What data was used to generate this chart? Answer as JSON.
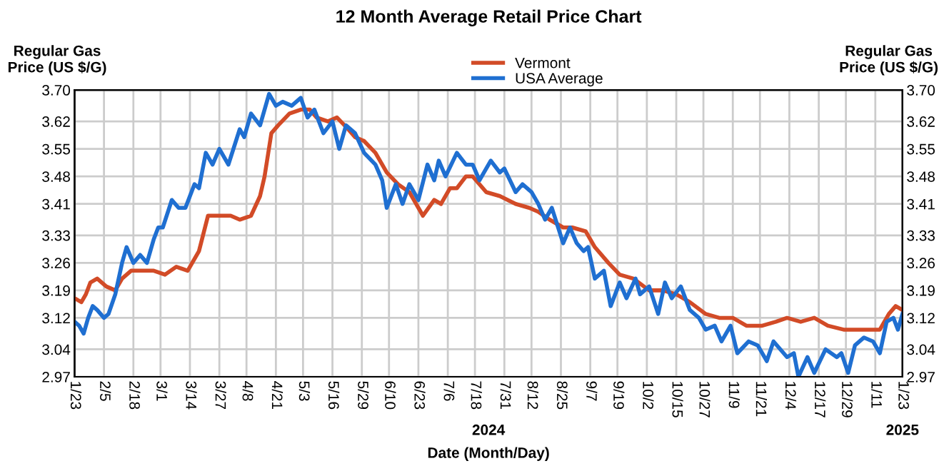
{
  "chart_data": {
    "type": "line",
    "title": "12 Month Average Retail Price Chart",
    "xlabel": "Date (Month/Day)",
    "ylabel": "Regular Gas\nPrice (US $/G)",
    "y2label": "Regular Gas\nPrice (US $/G)",
    "annotations": [
      "2024",
      "2025"
    ],
    "legend": "top",
    "grid": true,
    "marker": "none",
    "line_style": "solid",
    "xlim": [
      "2024-01-23",
      "2025-01-23"
    ],
    "xticks": [
      {
        "value": "2024-01-23",
        "label": "1/23"
      },
      {
        "value": "2024-02-05",
        "label": "2/5"
      },
      {
        "value": "2024-02-18",
        "label": "2/18"
      },
      {
        "value": "2024-03-01",
        "label": "3/1"
      },
      {
        "value": "2024-03-14",
        "label": "3/14"
      },
      {
        "value": "2024-03-27",
        "label": "3/27"
      },
      {
        "value": "2024-04-08",
        "label": "4/8"
      },
      {
        "value": "2024-04-21",
        "label": "4/21"
      },
      {
        "value": "2024-05-03",
        "label": "5/3"
      },
      {
        "value": "2024-05-16",
        "label": "5/16"
      },
      {
        "value": "2024-05-29",
        "label": "5/29"
      },
      {
        "value": "2024-06-10",
        "label": "6/10"
      },
      {
        "value": "2024-06-23",
        "label": "6/23"
      },
      {
        "value": "2024-07-06",
        "label": "7/6"
      },
      {
        "value": "2024-07-18",
        "label": "7/18"
      },
      {
        "value": "2024-07-31",
        "label": "7/31"
      },
      {
        "value": "2024-08-12",
        "label": "8/12"
      },
      {
        "value": "2024-08-25",
        "label": "8/25"
      },
      {
        "value": "2024-09-07",
        "label": "9/7"
      },
      {
        "value": "2024-09-19",
        "label": "9/19"
      },
      {
        "value": "2024-10-02",
        "label": "10/2"
      },
      {
        "value": "2024-10-15",
        "label": "10/15"
      },
      {
        "value": "2024-10-27",
        "label": "10/27"
      },
      {
        "value": "2024-11-09",
        "label": "11/9"
      },
      {
        "value": "2024-11-21",
        "label": "11/21"
      },
      {
        "value": "2024-12-04",
        "label": "12/4"
      },
      {
        "value": "2024-12-17",
        "label": "12/17"
      },
      {
        "value": "2024-12-29",
        "label": "12/29"
      },
      {
        "value": "2025-01-11",
        "label": "1/11"
      },
      {
        "value": "2025-01-23",
        "label": "1/23"
      }
    ],
    "ylim": [
      2.97,
      3.7
    ],
    "yticks": [
      2.97,
      3.04,
      3.12,
      3.19,
      3.26,
      3.33,
      3.41,
      3.48,
      3.55,
      3.62,
      {
        "value": 3.7,
        "label": "3.70"
      }
    ],
    "y2lim": [
      2.97,
      3.7
    ],
    "y2ticks": [
      2.97,
      3.04,
      3.12,
      3.19,
      3.26,
      3.33,
      3.41,
      3.48,
      3.55,
      3.62,
      {
        "value": 3.7,
        "label": "3.70"
      }
    ],
    "series": [
      {
        "name": "Vermont",
        "color": "#d24b27",
        "x": [
          "2024-01-23",
          "2024-01-26",
          "2024-01-28",
          "2024-01-30",
          "2024-02-02",
          "2024-02-06",
          "2024-02-10",
          "2024-02-13",
          "2024-02-17",
          "2024-02-21",
          "2024-02-27",
          "2024-03-03",
          "2024-03-08",
          "2024-03-13",
          "2024-03-18",
          "2024-03-22",
          "2024-03-27",
          "2024-04-01",
          "2024-04-05",
          "2024-04-10",
          "2024-04-14",
          "2024-04-16",
          "2024-04-19",
          "2024-04-22",
          "2024-04-27",
          "2024-05-02",
          "2024-05-06",
          "2024-05-09",
          "2024-05-14",
          "2024-05-18",
          "2024-05-23",
          "2024-05-26",
          "2024-05-30",
          "2024-06-04",
          "2024-06-09",
          "2024-06-14",
          "2024-06-19",
          "2024-06-25",
          "2024-06-30",
          "2024-07-03",
          "2024-07-07",
          "2024-07-10",
          "2024-07-14",
          "2024-07-17",
          "2024-07-23",
          "2024-07-29",
          "2024-08-05",
          "2024-08-11",
          "2024-08-15",
          "2024-08-20",
          "2024-08-26",
          "2024-08-30",
          "2024-09-05",
          "2024-09-09",
          "2024-09-15",
          "2024-09-20",
          "2024-09-26",
          "2024-10-03",
          "2024-10-09",
          "2024-10-15",
          "2024-10-21",
          "2024-10-28",
          "2024-11-03",
          "2024-11-09",
          "2024-11-15",
          "2024-11-22",
          "2024-11-28",
          "2024-12-03",
          "2024-12-09",
          "2024-12-15",
          "2024-12-21",
          "2024-12-28",
          "2025-01-03",
          "2025-01-09",
          "2025-01-13",
          "2025-01-17",
          "2025-01-20",
          "2025-01-23"
        ],
        "values": [
          3.17,
          3.16,
          3.18,
          3.21,
          3.22,
          3.2,
          3.19,
          3.22,
          3.24,
          3.24,
          3.24,
          3.23,
          3.25,
          3.24,
          3.29,
          3.38,
          3.38,
          3.38,
          3.37,
          3.38,
          3.43,
          3.48,
          3.59,
          3.61,
          3.64,
          3.65,
          3.65,
          3.63,
          3.62,
          3.63,
          3.6,
          3.58,
          3.57,
          3.54,
          3.49,
          3.46,
          3.44,
          3.38,
          3.42,
          3.41,
          3.45,
          3.45,
          3.48,
          3.48,
          3.44,
          3.43,
          3.41,
          3.4,
          3.39,
          3.37,
          3.35,
          3.35,
          3.34,
          3.3,
          3.26,
          3.23,
          3.22,
          3.19,
          3.19,
          3.18,
          3.16,
          3.13,
          3.12,
          3.12,
          3.1,
          3.1,
          3.11,
          3.12,
          3.11,
          3.12,
          3.1,
          3.09,
          3.09,
          3.09,
          3.09,
          3.13,
          3.15,
          3.14
        ]
      },
      {
        "name": "USA Average",
        "color": "#1f6fd1",
        "x": [
          "2024-01-23",
          "2024-01-25",
          "2024-01-27",
          "2024-01-29",
          "2024-01-31",
          "2024-02-02",
          "2024-02-05",
          "2024-02-07",
          "2024-02-10",
          "2024-02-13",
          "2024-02-15",
          "2024-02-18",
          "2024-02-21",
          "2024-02-24",
          "2024-02-27",
          "2024-02-29",
          "2024-03-02",
          "2024-03-06",
          "2024-03-09",
          "2024-03-12",
          "2024-03-16",
          "2024-03-18",
          "2024-03-21",
          "2024-03-24",
          "2024-03-27",
          "2024-03-31",
          "2024-04-05",
          "2024-04-07",
          "2024-04-10",
          "2024-04-14",
          "2024-04-18",
          "2024-04-21",
          "2024-04-24",
          "2024-04-28",
          "2024-05-02",
          "2024-05-05",
          "2024-05-08",
          "2024-05-12",
          "2024-05-16",
          "2024-05-19",
          "2024-05-22",
          "2024-05-26",
          "2024-05-30",
          "2024-06-04",
          "2024-06-07",
          "2024-06-09",
          "2024-06-13",
          "2024-06-16",
          "2024-06-19",
          "2024-06-23",
          "2024-06-27",
          "2024-06-30",
          "2024-07-02",
          "2024-07-05",
          "2024-07-10",
          "2024-07-14",
          "2024-07-17",
          "2024-07-20",
          "2024-07-25",
          "2024-07-29",
          "2024-07-31",
          "2024-08-05",
          "2024-08-08",
          "2024-08-12",
          "2024-08-15",
          "2024-08-18",
          "2024-08-21",
          "2024-08-26",
          "2024-08-29",
          "2024-09-01",
          "2024-09-04",
          "2024-09-06",
          "2024-09-09",
          "2024-09-13",
          "2024-09-16",
          "2024-09-20",
          "2024-09-23",
          "2024-09-27",
          "2024-09-29",
          "2024-10-03",
          "2024-10-07",
          "2024-10-10",
          "2024-10-13",
          "2024-10-17",
          "2024-10-21",
          "2024-10-25",
          "2024-10-28",
          "2024-11-01",
          "2024-11-04",
          "2024-11-08",
          "2024-11-11",
          "2024-11-16",
          "2024-11-20",
          "2024-11-24",
          "2024-11-27",
          "2024-12-03",
          "2024-12-06",
          "2024-12-08",
          "2024-12-12",
          "2024-12-15",
          "2024-12-20",
          "2024-12-25",
          "2024-12-27",
          "2024-12-30",
          "2025-01-02",
          "2025-01-06",
          "2025-01-10",
          "2025-01-13",
          "2025-01-16",
          "2025-01-19",
          "2025-01-21",
          "2025-01-23"
        ],
        "values": [
          3.11,
          3.1,
          3.08,
          3.12,
          3.15,
          3.14,
          3.12,
          3.13,
          3.18,
          3.26,
          3.3,
          3.26,
          3.28,
          3.26,
          3.32,
          3.35,
          3.35,
          3.42,
          3.4,
          3.4,
          3.46,
          3.45,
          3.54,
          3.51,
          3.55,
          3.51,
          3.6,
          3.58,
          3.64,
          3.61,
          3.69,
          3.66,
          3.67,
          3.66,
          3.68,
          3.63,
          3.65,
          3.59,
          3.62,
          3.55,
          3.61,
          3.59,
          3.54,
          3.51,
          3.47,
          3.4,
          3.46,
          3.41,
          3.46,
          3.42,
          3.51,
          3.47,
          3.52,
          3.48,
          3.54,
          3.51,
          3.51,
          3.47,
          3.52,
          3.49,
          3.5,
          3.44,
          3.46,
          3.44,
          3.41,
          3.37,
          3.4,
          3.31,
          3.35,
          3.31,
          3.29,
          3.3,
          3.22,
          3.24,
          3.15,
          3.21,
          3.17,
          3.22,
          3.18,
          3.2,
          3.13,
          3.21,
          3.17,
          3.2,
          3.14,
          3.12,
          3.09,
          3.1,
          3.06,
          3.1,
          3.03,
          3.06,
          3.05,
          3.01,
          3.06,
          3.02,
          3.03,
          2.97,
          3.02,
          2.98,
          3.04,
          3.02,
          3.03,
          2.98,
          3.05,
          3.07,
          3.06,
          3.03,
          3.11,
          3.12,
          3.09,
          3.13
        ]
      }
    ]
  }
}
